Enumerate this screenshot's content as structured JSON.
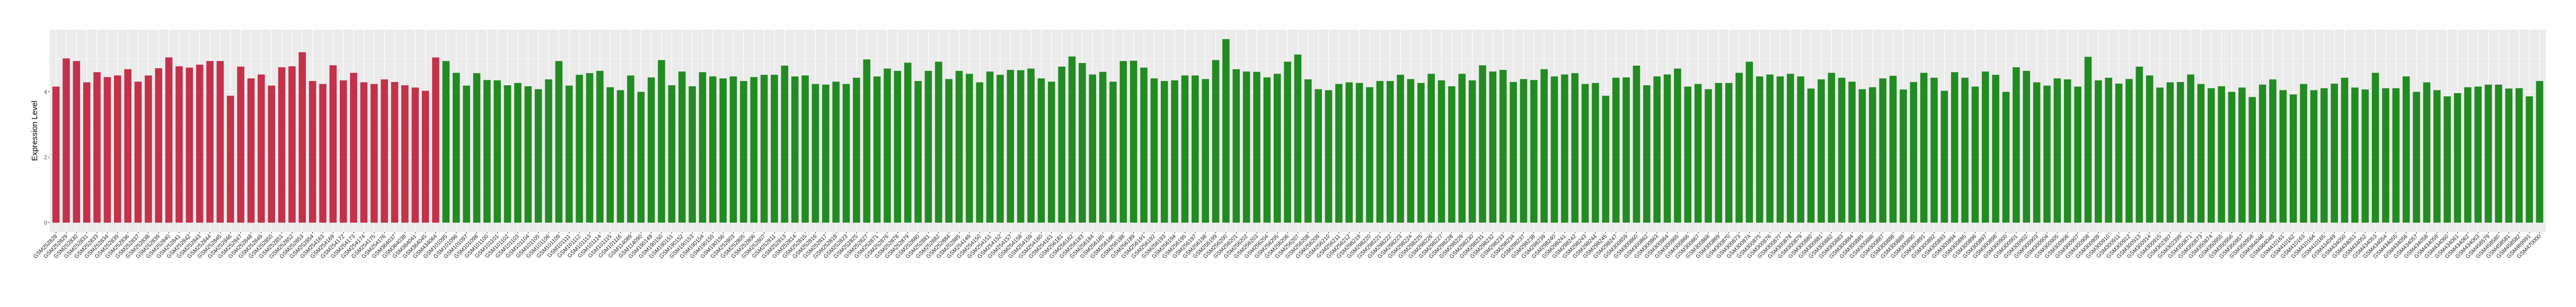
{
  "chart_data": {
    "type": "bar",
    "title": "",
    "xlabel": "",
    "ylabel": "Expression Level",
    "ylim": [
      -0.28,
      5.9
    ],
    "yticks": [
      0,
      2,
      4
    ],
    "grid": true,
    "panel_background": "#EBEBEB",
    "series": [
      {
        "color": "#C3314A",
        "categories": [
          "GSM252828",
          "GSM252829",
          "GSM252830",
          "GSM252831",
          "GSM252833",
          "GSM252834",
          "GSM252835",
          "GSM252836",
          "GSM252837",
          "GSM252838",
          "GSM252839",
          "GSM252840",
          "GSM252841",
          "GSM252842",
          "GSM252843",
          "GSM252844",
          "GSM252845",
          "GSM252846",
          "GSM252847",
          "GSM252848",
          "GSM252849",
          "GSM252850",
          "GSM252851",
          "GSM252852",
          "GSM252853",
          "GSM252854",
          "GSM254163",
          "GSM254169",
          "GSM254172",
          "GSM254173",
          "GSM254174",
          "GSM254175",
          "GSM254176",
          "GSM364037",
          "GSM364038",
          "GSM364041",
          "GSM364045",
          "GSM434064"
        ],
        "values": [
          4.16,
          5.02,
          4.94,
          4.29,
          4.6,
          4.45,
          4.5,
          4.69,
          4.31,
          4.5,
          4.72,
          5.05,
          4.78,
          4.74,
          4.83,
          4.94,
          4.94,
          3.88,
          4.77,
          4.41,
          4.53,
          4.19,
          4.75,
          4.78,
          5.21,
          4.33,
          4.24,
          4.81,
          4.35,
          4.58,
          4.29,
          4.24,
          4.38,
          4.3,
          4.2,
          4.13,
          4.03,
          5.05
        ]
      },
      {
        "color": "#228B22",
        "categories": [
          "GSM101095",
          "GSM101096",
          "GSM101097",
          "GSM101098",
          "GSM101100",
          "GSM101101",
          "GSM101102",
          "GSM101103",
          "GSM101104",
          "GSM101105",
          "GSM101106",
          "GSM101109",
          "GSM101111",
          "GSM101112",
          "GSM101113",
          "GSM101114",
          "GSM101115",
          "GSM101116",
          "GSM114089",
          "GSM114090",
          "GSM190149",
          "GSM190150",
          "GSM190151",
          "GSM190152",
          "GSM190153",
          "GSM190154",
          "GSM190155",
          "GSM190156",
          "GSM252803",
          "GSM252805",
          "GSM252806",
          "GSM252807",
          "GSM252811",
          "GSM252813",
          "GSM252814",
          "GSM252815",
          "GSM252816",
          "GSM252817",
          "GSM252818",
          "GSM252823",
          "GSM252825",
          "GSM252827",
          "GSM252871",
          "GSM252876",
          "GSM252878",
          "GSM252879",
          "GSM252880",
          "GSM252881",
          "GSM252882",
          "GSM252884",
          "GSM252885",
          "GSM254149",
          "GSM254150",
          "GSM254151",
          "GSM254152",
          "GSM254157",
          "GSM254158",
          "GSM254159",
          "GSM254160",
          "GSM254161",
          "GSM256181",
          "GSM256182",
          "GSM256183",
          "GSM256184",
          "GSM256185",
          "GSM256186",
          "GSM256188",
          "GSM256189",
          "GSM256191",
          "GSM256192",
          "GSM256193",
          "GSM256194",
          "GSM256195",
          "GSM256197",
          "GSM256198",
          "GSM256199",
          "GSM256200",
          "GSM256201",
          "GSM256202",
          "GSM256203",
          "GSM256204",
          "GSM256205",
          "GSM256206",
          "GSM256207",
          "GSM256208",
          "GSM256209",
          "GSM256210",
          "GSM256211",
          "GSM256212",
          "GSM298219",
          "GSM298220",
          "GSM298221",
          "GSM298222",
          "GSM298223",
          "GSM298224",
          "GSM298225",
          "GSM298226",
          "GSM298227",
          "GSM298228",
          "GSM298229",
          "GSM298230",
          "GSM298231",
          "GSM298232",
          "GSM298233",
          "GSM298234",
          "GSM298237",
          "GSM298238",
          "GSM298239",
          "GSM298240",
          "GSM298241",
          "GSM298242",
          "GSM298243",
          "GSM298244",
          "GSM298245",
          "GSM298247",
          "GSM300859",
          "GSM300860",
          "GSM300862",
          "GSM300863",
          "GSM300864",
          "GSM300865",
          "GSM300866",
          "GSM300867",
          "GSM300868",
          "GSM300869",
          "GSM300870",
          "GSM300873",
          "GSM300874",
          "GSM300875",
          "GSM300876",
          "GSM300877",
          "GSM300878",
          "GSM300879",
          "GSM300880",
          "GSM300881",
          "GSM300882",
          "GSM300883",
          "GSM300884",
          "GSM300885",
          "GSM300886",
          "GSM300887",
          "GSM300888",
          "GSM300889",
          "GSM300890",
          "GSM300891",
          "GSM300892",
          "GSM300893",
          "GSM300894",
          "GSM300895",
          "GSM300896",
          "GSM300897",
          "GSM300898",
          "GSM300900",
          "GSM300901",
          "GSM300902",
          "GSM300903",
          "GSM300904",
          "GSM300905",
          "GSM300906",
          "GSM300907",
          "GSM300908",
          "GSM300909",
          "GSM300910",
          "GSM300911",
          "GSM300912",
          "GSM300913",
          "GSM300914",
          "GSM300915",
          "GSM302397",
          "GSM302399",
          "GSM350871",
          "GSM350873",
          "GSM350874",
          "GSM350955",
          "GSM350956",
          "GSM350957",
          "GSM350958",
          "GSM364046",
          "GSM364048",
          "GSM410161",
          "GSM410162",
          "GSM410163",
          "GSM410164",
          "GSM410165",
          "GSM434049",
          "GSM434050",
          "GSM434051",
          "GSM434052",
          "GSM434053",
          "GSM434054",
          "GSM434055",
          "GSM434056",
          "GSM434057",
          "GSM434058",
          "GSM434059",
          "GSM434060",
          "GSM434061",
          "GSM434062",
          "GSM434063",
          "GSM458579",
          "GSM458580",
          "GSM458581",
          "GSM458582",
          "GSM469991",
          "GSM470000"
        ],
        "values": [
          4.94,
          4.58,
          4.19,
          4.57,
          4.36,
          4.35,
          4.2,
          4.27,
          4.17,
          4.08,
          4.38,
          4.94,
          4.19,
          4.52,
          4.57,
          4.64,
          4.14,
          4.05,
          4.5,
          4.0,
          4.44,
          4.97,
          4.2,
          4.62,
          4.17,
          4.6,
          4.47,
          4.41,
          4.47,
          4.33,
          4.45,
          4.52,
          4.52,
          4.8,
          4.47,
          4.5,
          4.24,
          4.22,
          4.31,
          4.24,
          4.43,
          4.99,
          4.47,
          4.71,
          4.64,
          4.89,
          4.33,
          4.64,
          4.92,
          4.39,
          4.64,
          4.55,
          4.29,
          4.62,
          4.52,
          4.67,
          4.66,
          4.71,
          4.41,
          4.31,
          4.77,
          5.08,
          4.88,
          4.53,
          4.61,
          4.31,
          4.94,
          4.95,
          4.74,
          4.41,
          4.33,
          4.35,
          4.5,
          4.5,
          4.39,
          4.97,
          5.61,
          4.69,
          4.62,
          4.61,
          4.44,
          4.55,
          4.92,
          5.14,
          4.38,
          4.08,
          4.05,
          4.24,
          4.29,
          4.27,
          4.14,
          4.33,
          4.33,
          4.52,
          4.39,
          4.27,
          4.55,
          4.35,
          4.17,
          4.55,
          4.35,
          4.81,
          4.62,
          4.67,
          4.3,
          4.39,
          4.36,
          4.69,
          4.47,
          4.53,
          4.57,
          4.24,
          4.27,
          3.88,
          4.43,
          4.44,
          4.8,
          4.2,
          4.47,
          4.53,
          4.71,
          4.16,
          4.24,
          4.08,
          4.27,
          4.27,
          4.58,
          4.92,
          4.47,
          4.53,
          4.47,
          4.55,
          4.47,
          4.1,
          4.38,
          4.58,
          4.43,
          4.31,
          4.08,
          4.14,
          4.41,
          4.49,
          4.07,
          4.3,
          4.58,
          4.43,
          4.03,
          4.6,
          4.43,
          4.16,
          4.62,
          4.52,
          4.0,
          4.75,
          4.64,
          4.29,
          4.19,
          4.41,
          4.38,
          4.16,
          5.07,
          4.35,
          4.43,
          4.25,
          4.39,
          4.77,
          4.5,
          4.13,
          4.29,
          4.3,
          4.53,
          4.24,
          4.11,
          4.17,
          4.0,
          4.13,
          3.84,
          4.22,
          4.38,
          4.05,
          3.92,
          4.24,
          4.05,
          4.11,
          4.25,
          4.43,
          4.13,
          4.07,
          4.58,
          4.11,
          4.11,
          4.47,
          4.0,
          4.29,
          4.05,
          3.86,
          3.96,
          4.14,
          4.16,
          4.22,
          4.22,
          4.1,
          4.11,
          3.86,
          4.33
        ]
      }
    ]
  }
}
